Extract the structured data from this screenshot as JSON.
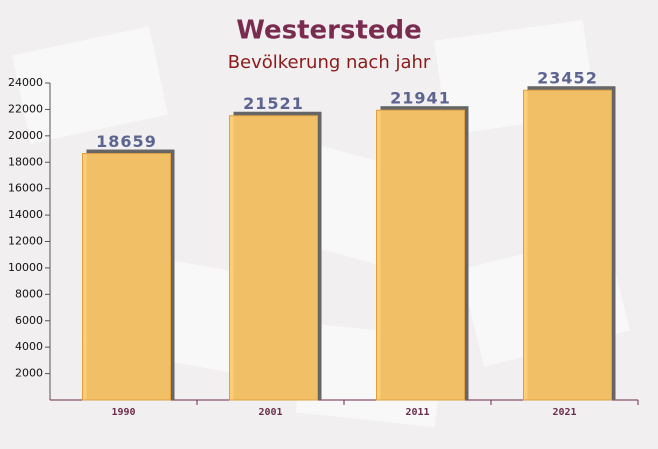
{
  "chart_data": {
    "type": "bar",
    "title": "Westerstede",
    "subtitle": "Bevölkerung nach jahr",
    "categories": [
      "1990",
      "2001",
      "2011",
      "2021"
    ],
    "values": [
      18659,
      21521,
      21941,
      23452
    ],
    "color": "#ffc966",
    "ylim": [
      0,
      24000
    ],
    "yticks": [
      2000,
      4000,
      6000,
      8000,
      10000,
      12000,
      14000,
      16000,
      18000,
      20000,
      22000,
      24000
    ]
  }
}
